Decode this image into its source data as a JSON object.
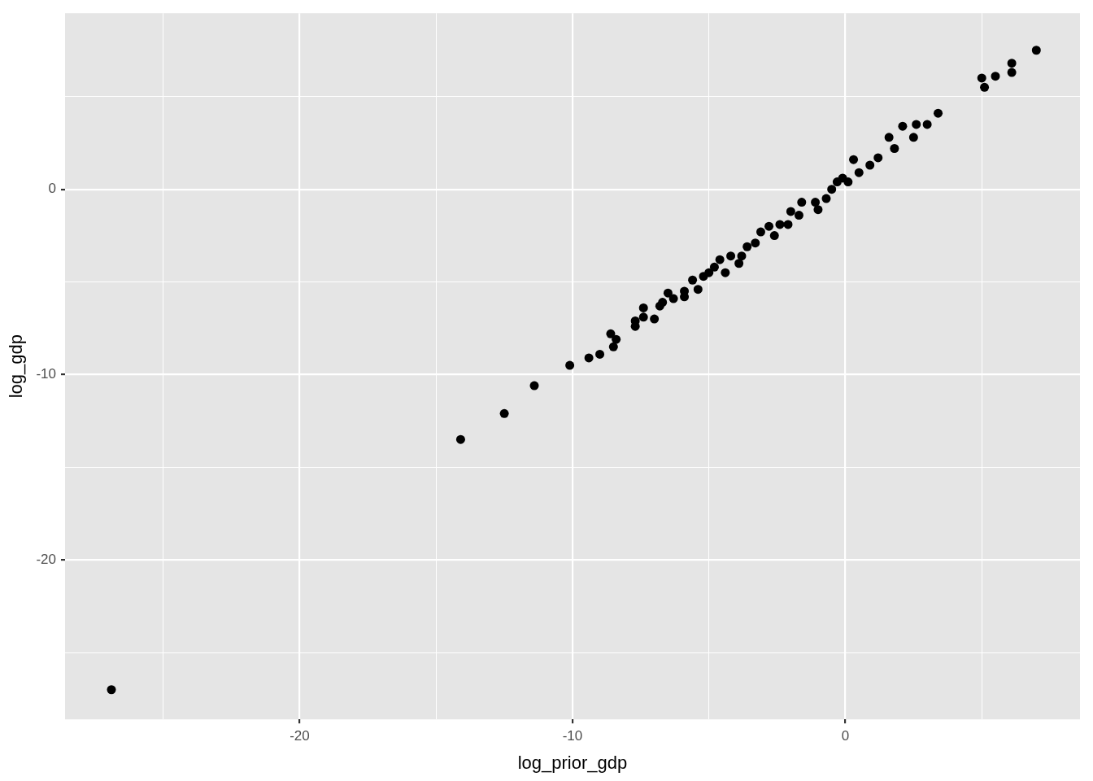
{
  "chart_data": {
    "type": "scatter",
    "xlabel": "log_prior_gdp",
    "ylabel": "log_gdp",
    "xlim": [
      -28.6,
      8.6
    ],
    "ylim": [
      -28.6,
      9.5
    ],
    "xticks": [
      {
        "value": -25,
        "label": null
      },
      -20,
      {
        "value": -15,
        "label": null
      },
      -10,
      {
        "value": -5,
        "label": null
      },
      0,
      {
        "value": 5,
        "label": null
      }
    ],
    "yticks": [
      {
        "value": -25,
        "label": null
      },
      -20,
      {
        "value": -15,
        "label": null
      },
      -10,
      {
        "value": -5,
        "label": null
      },
      0,
      {
        "value": 5,
        "label": null
      }
    ],
    "grid": true,
    "legend": false,
    "marker": "circle",
    "series": [
      {
        "color": "#000000",
        "x": [
          -26.9,
          -14.1,
          -12.5,
          -11.4,
          -10.1,
          -9.4,
          -9.0,
          -8.6,
          -8.4,
          -8.5,
          -7.7,
          -7.7,
          -7.4,
          -7.4,
          -7.0,
          -6.8,
          -6.7,
          -6.5,
          -6.3,
          -5.9,
          -5.9,
          -5.6,
          -5.4,
          -5.2,
          -5.0,
          -4.8,
          -4.6,
          -4.4,
          -4.2,
          -3.9,
          -3.8,
          -3.6,
          -3.3,
          -3.1,
          -2.8,
          -2.6,
          -2.4,
          -2.0,
          -2.1,
          -1.7,
          -1.6,
          -1.1,
          -1.0,
          -0.7,
          -0.5,
          -0.3,
          -0.1,
          0.1,
          0.3,
          0.5,
          0.9,
          1.2,
          1.6,
          1.8,
          2.1,
          2.5,
          2.6,
          3.0,
          3.4,
          5.0,
          5.1,
          5.5,
          6.1,
          6.1,
          7.0
        ],
        "values": [
          -27.0,
          -13.5,
          -12.1,
          -10.6,
          -9.5,
          -9.1,
          -8.9,
          -7.8,
          -8.1,
          -8.5,
          -7.1,
          -7.4,
          -6.4,
          -6.9,
          -7.0,
          -6.3,
          -6.1,
          -5.6,
          -5.9,
          -5.8,
          -5.5,
          -4.9,
          -5.4,
          -4.7,
          -4.5,
          -4.2,
          -3.8,
          -4.5,
          -3.6,
          -4.0,
          -3.6,
          -3.1,
          -2.9,
          -2.3,
          -2.0,
          -2.5,
          -1.9,
          -1.2,
          -1.9,
          -1.4,
          -0.7,
          -0.7,
          -1.1,
          -0.5,
          0.0,
          0.4,
          0.6,
          0.4,
          1.6,
          0.9,
          1.3,
          1.7,
          2.8,
          2.2,
          3.4,
          2.8,
          3.5,
          3.5,
          4.1,
          6.0,
          5.5,
          6.1,
          6.8,
          6.3,
          7.5
        ]
      }
    ]
  }
}
